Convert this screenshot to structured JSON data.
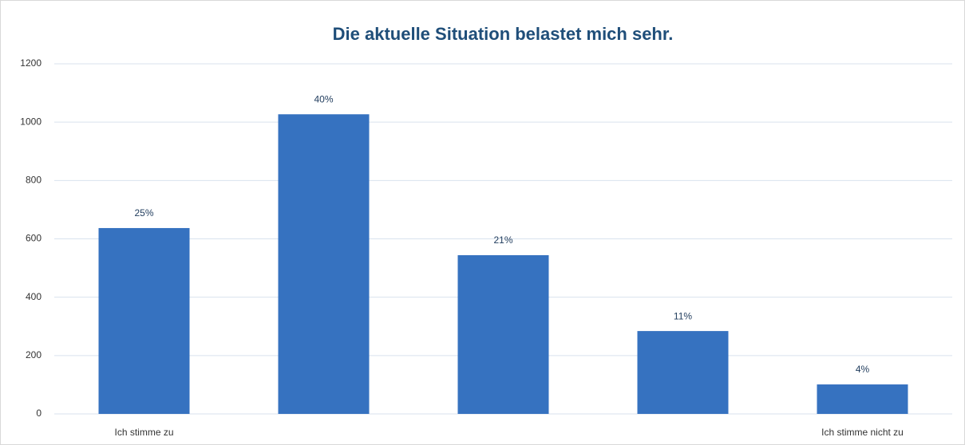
{
  "chart_data": {
    "type": "bar",
    "title": "Die aktuelle Situation belastet mich sehr.",
    "categories": [
      "Ich stimme zu",
      null,
      null,
      null,
      "Ich stimme nicht zu"
    ],
    "values": [
      637,
      1027,
      544,
      284,
      101
    ],
    "data_labels": [
      "25%",
      "40%",
      "21%",
      "11%",
      "4%"
    ],
    "color": "#3672c0",
    "ylim": [
      0,
      1200
    ],
    "yticks": [
      0,
      200,
      400,
      600,
      800,
      1000,
      1200
    ],
    "grid": true
  }
}
